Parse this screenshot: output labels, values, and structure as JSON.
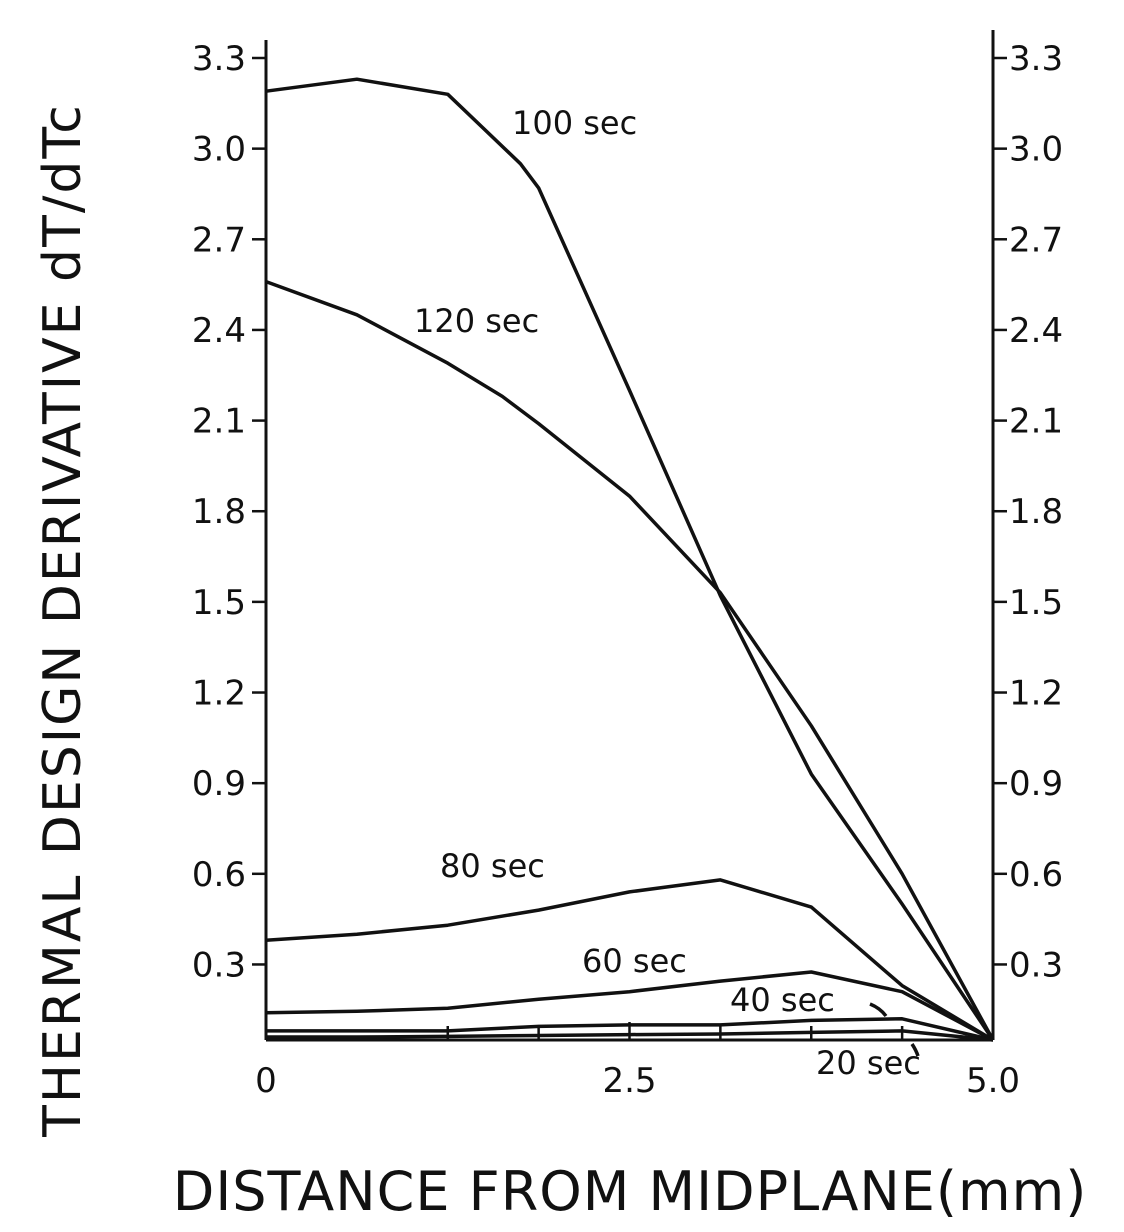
{
  "chart_data": {
    "type": "line",
    "title": "",
    "xlabel": "DISTANCE FROM MIDPLANE(mm)",
    "ylabel": "THERMAL DESIGN DERIVATIVE dT/dTc",
    "xlim": [
      0,
      5.0
    ],
    "ylim": [
      0.05,
      3.3
    ],
    "x_ticks": [
      {
        "value": 0,
        "label": "0"
      },
      {
        "value": 2.5,
        "label": "2.5"
      },
      {
        "value": 5.0,
        "label": "5.0"
      }
    ],
    "x_minor_ticks": [
      1.25,
      1.875,
      3.125,
      3.75,
      4.375
    ],
    "y_ticks_left": [
      {
        "value": 0.3,
        "label": "0.3"
      },
      {
        "value": 0.6,
        "label": "0.6"
      },
      {
        "value": 0.9,
        "label": "0.9"
      },
      {
        "value": 1.2,
        "label": "1.2"
      },
      {
        "value": 1.5,
        "label": "1.5"
      },
      {
        "value": 1.8,
        "label": "1.8"
      },
      {
        "value": 2.1,
        "label": "2.1"
      },
      {
        "value": 2.4,
        "label": "2.4"
      },
      {
        "value": 2.7,
        "label": "2.7"
      },
      {
        "value": 3.0,
        "label": "3.0"
      },
      {
        "value": 3.3,
        "label": "3.3"
      }
    ],
    "y_ticks_right": [
      {
        "value": 0.3,
        "label": "0.3"
      },
      {
        "value": 0.6,
        "label": "0.6"
      },
      {
        "value": 0.9,
        "label": "0.9"
      },
      {
        "value": 1.2,
        "label": "1.2"
      },
      {
        "value": 1.5,
        "label": "1.5"
      },
      {
        "value": 1.8,
        "label": "1.8"
      },
      {
        "value": 2.1,
        "label": "2.1"
      },
      {
        "value": 2.4,
        "label": "2.4"
      },
      {
        "value": 2.7,
        "label": "2.7"
      },
      {
        "value": 3.0,
        "label": "3.0"
      },
      {
        "value": 3.3,
        "label": "3.3"
      }
    ],
    "grid": false,
    "series": [
      {
        "name": "100 sec",
        "x": [
          0,
          0.625,
          1.25,
          1.75,
          1.875,
          2.5,
          3.125,
          3.75,
          4.375,
          5.0
        ],
        "y": [
          3.19,
          3.23,
          3.18,
          2.95,
          2.87,
          2.2,
          1.52,
          0.93,
          0.5,
          0.05
        ]
      },
      {
        "name": "120 sec",
        "x": [
          0,
          0.625,
          1.25,
          1.625,
          1.875,
          2.5,
          3.125,
          3.75,
          4.375,
          5.0
        ],
        "y": [
          2.56,
          2.45,
          2.29,
          2.18,
          2.09,
          1.85,
          1.53,
          1.09,
          0.6,
          0.05
        ]
      },
      {
        "name": "80 sec",
        "x": [
          0,
          0.625,
          1.25,
          1.875,
          2.5,
          3.125,
          3.75,
          4.375,
          5.0
        ],
        "y": [
          0.38,
          0.4,
          0.43,
          0.48,
          0.54,
          0.58,
          0.49,
          0.23,
          0.05
        ]
      },
      {
        "name": "60 sec",
        "x": [
          0,
          0.625,
          1.25,
          1.875,
          2.5,
          3.125,
          3.75,
          4.375,
          5.0
        ],
        "y": [
          0.14,
          0.145,
          0.155,
          0.185,
          0.21,
          0.245,
          0.275,
          0.21,
          0.05
        ]
      },
      {
        "name": "40 sec",
        "x": [
          0,
          0.625,
          1.25,
          1.875,
          2.5,
          3.125,
          3.75,
          4.375,
          5.0
        ],
        "y": [
          0.08,
          0.08,
          0.08,
          0.095,
          0.1,
          0.1,
          0.115,
          0.12,
          0.05
        ]
      },
      {
        "name": "20 sec",
        "x": [
          0,
          0.625,
          1.25,
          1.875,
          2.5,
          3.125,
          3.75,
          4.375,
          5.0
        ],
        "y": [
          0.06,
          0.06,
          0.062,
          0.065,
          0.068,
          0.07,
          0.075,
          0.08,
          0.05
        ]
      }
    ],
    "series_labels": [
      {
        "series": "100 sec",
        "text": "100 sec"
      },
      {
        "series": "120 sec",
        "text": "120 sec"
      },
      {
        "series": "80 sec",
        "text": "80 sec"
      },
      {
        "series": "60 sec",
        "text": "60 sec"
      },
      {
        "series": "40 sec",
        "text": "40 sec"
      },
      {
        "series": "20 sec",
        "text": "20 sec"
      }
    ]
  }
}
